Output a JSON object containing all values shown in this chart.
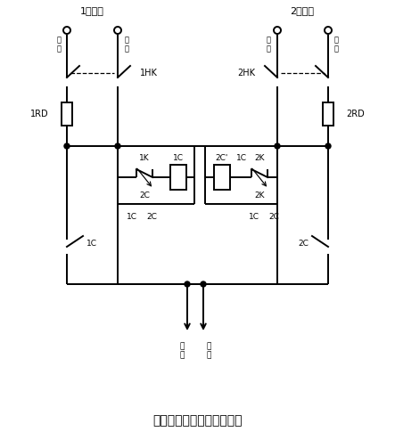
{
  "title": "单相照明双路互备自投供电",
  "bg": "#ffffff",
  "src1": "1号电源",
  "src2": "2号电源",
  "lfire": "火\n线",
  "lneutral": "零\n线",
  "rneutral": "零\n线",
  "rfire": "火\n线",
  "lbl_1HK": "1HK",
  "lbl_2HK": "2HK",
  "lbl_1RD": "1RD",
  "lbl_2RD": "2RD",
  "lbl_1K": "1K",
  "lbl_2K": "2K",
  "lbl_1C": "1C",
  "lbl_2C": "2C",
  "lbl_2Cprime": "2C'",
  "lbl_out_fire": "火\n线",
  "lbl_out_neutral": "零\n线"
}
